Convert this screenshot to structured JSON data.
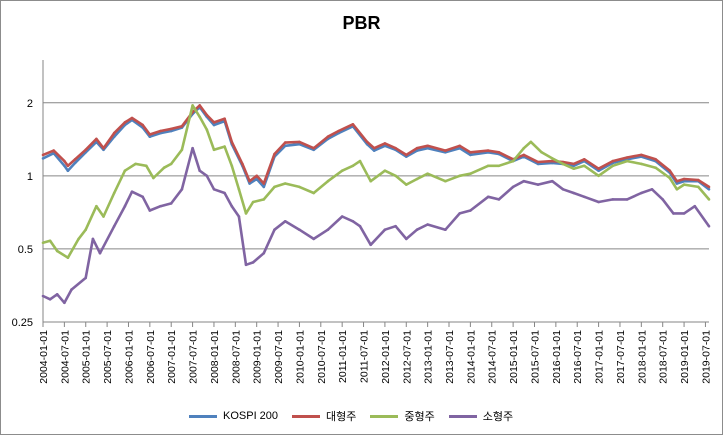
{
  "chart_data": {
    "type": "line",
    "title": "PBR",
    "xlabel": "",
    "ylabel": "",
    "y_scale": "log",
    "ylim": [
      0.25,
      3
    ],
    "y_ticks": [
      0.25,
      0.5,
      1,
      2
    ],
    "y_tick_labels": [
      "0.25",
      "0.5",
      "1",
      "2"
    ],
    "grid": true,
    "legend_position": "bottom",
    "x_start": "2004-01",
    "x_end": "2019-08",
    "x_tick_labels": [
      "2004-01-01",
      "2004-07-01",
      "2005-01-01",
      "2005-07-01",
      "2006-01-01",
      "2006-07-01",
      "2007-01-01",
      "2007-07-01",
      "2008-01-01",
      "2008-07-01",
      "2009-01-01",
      "2009-07-01",
      "2010-01-01",
      "2010-07-01",
      "2011-01-01",
      "2011-07-01",
      "2012-01-01",
      "2012-07-01",
      "2013-01-01",
      "2013-07-01",
      "2014-01-01",
      "2014-07-01",
      "2015-01-01",
      "2015-07-01",
      "2016-01-01",
      "2016-07-01",
      "2017-01-01",
      "2017-07-01",
      "2018-01-01",
      "2018-07-01",
      "2019-01-01",
      "2019-07-01"
    ],
    "series": [
      {
        "name": "KOSPI 200",
        "color": "#4f81bd",
        "points": [
          [
            "2004-01",
            1.18
          ],
          [
            "2004-04",
            1.24
          ],
          [
            "2004-07",
            1.1
          ],
          [
            "2004-08",
            1.05
          ],
          [
            "2004-10",
            1.13
          ],
          [
            "2005-01",
            1.25
          ],
          [
            "2005-04",
            1.38
          ],
          [
            "2005-06",
            1.28
          ],
          [
            "2005-09",
            1.45
          ],
          [
            "2005-12",
            1.62
          ],
          [
            "2006-02",
            1.7
          ],
          [
            "2006-05",
            1.58
          ],
          [
            "2006-07",
            1.45
          ],
          [
            "2006-10",
            1.5
          ],
          [
            "2007-01",
            1.53
          ],
          [
            "2007-04",
            1.58
          ],
          [
            "2007-07",
            1.8
          ],
          [
            "2007-09",
            1.92
          ],
          [
            "2007-11",
            1.75
          ],
          [
            "2008-01",
            1.62
          ],
          [
            "2008-04",
            1.68
          ],
          [
            "2008-06",
            1.35
          ],
          [
            "2008-09",
            1.1
          ],
          [
            "2008-11",
            0.93
          ],
          [
            "2009-01",
            0.97
          ],
          [
            "2009-03",
            0.9
          ],
          [
            "2009-06",
            1.2
          ],
          [
            "2009-09",
            1.33
          ],
          [
            "2010-01",
            1.35
          ],
          [
            "2010-05",
            1.28
          ],
          [
            "2010-09",
            1.42
          ],
          [
            "2010-12",
            1.5
          ],
          [
            "2011-04",
            1.6
          ],
          [
            "2011-08",
            1.35
          ],
          [
            "2011-10",
            1.27
          ],
          [
            "2012-01",
            1.33
          ],
          [
            "2012-04",
            1.28
          ],
          [
            "2012-07",
            1.2
          ],
          [
            "2012-10",
            1.27
          ],
          [
            "2013-01",
            1.3
          ],
          [
            "2013-06",
            1.25
          ],
          [
            "2013-10",
            1.3
          ],
          [
            "2014-01",
            1.22
          ],
          [
            "2014-06",
            1.25
          ],
          [
            "2014-09",
            1.23
          ],
          [
            "2015-01",
            1.15
          ],
          [
            "2015-04",
            1.2
          ],
          [
            "2015-08",
            1.12
          ],
          [
            "2015-12",
            1.13
          ],
          [
            "2016-03",
            1.12
          ],
          [
            "2016-06",
            1.1
          ],
          [
            "2016-09",
            1.15
          ],
          [
            "2017-01",
            1.05
          ],
          [
            "2017-05",
            1.13
          ],
          [
            "2017-09",
            1.17
          ],
          [
            "2018-01",
            1.2
          ],
          [
            "2018-05",
            1.15
          ],
          [
            "2018-09",
            1.03
          ],
          [
            "2018-11",
            0.93
          ],
          [
            "2019-01",
            0.95
          ],
          [
            "2019-05",
            0.95
          ],
          [
            "2019-08",
            0.88
          ]
        ]
      },
      {
        "name": "대형주",
        "color": "#c0504d",
        "points": [
          [
            "2004-01",
            1.22
          ],
          [
            "2004-04",
            1.27
          ],
          [
            "2004-07",
            1.15
          ],
          [
            "2004-08",
            1.1
          ],
          [
            "2004-10",
            1.17
          ],
          [
            "2005-01",
            1.28
          ],
          [
            "2005-04",
            1.42
          ],
          [
            "2005-06",
            1.3
          ],
          [
            "2005-09",
            1.5
          ],
          [
            "2005-12",
            1.66
          ],
          [
            "2006-02",
            1.73
          ],
          [
            "2006-05",
            1.62
          ],
          [
            "2006-07",
            1.48
          ],
          [
            "2006-10",
            1.53
          ],
          [
            "2007-01",
            1.56
          ],
          [
            "2007-04",
            1.6
          ],
          [
            "2007-07",
            1.83
          ],
          [
            "2007-09",
            1.95
          ],
          [
            "2007-11",
            1.78
          ],
          [
            "2008-01",
            1.66
          ],
          [
            "2008-04",
            1.72
          ],
          [
            "2008-06",
            1.38
          ],
          [
            "2008-09",
            1.12
          ],
          [
            "2008-11",
            0.95
          ],
          [
            "2009-01",
            1.0
          ],
          [
            "2009-03",
            0.93
          ],
          [
            "2009-06",
            1.23
          ],
          [
            "2009-09",
            1.37
          ],
          [
            "2010-01",
            1.38
          ],
          [
            "2010-05",
            1.3
          ],
          [
            "2010-09",
            1.45
          ],
          [
            "2010-12",
            1.53
          ],
          [
            "2011-04",
            1.63
          ],
          [
            "2011-08",
            1.38
          ],
          [
            "2011-10",
            1.3
          ],
          [
            "2012-01",
            1.36
          ],
          [
            "2012-04",
            1.3
          ],
          [
            "2012-07",
            1.22
          ],
          [
            "2012-10",
            1.3
          ],
          [
            "2013-01",
            1.33
          ],
          [
            "2013-06",
            1.27
          ],
          [
            "2013-10",
            1.33
          ],
          [
            "2014-01",
            1.25
          ],
          [
            "2014-06",
            1.27
          ],
          [
            "2014-09",
            1.25
          ],
          [
            "2015-01",
            1.17
          ],
          [
            "2015-04",
            1.22
          ],
          [
            "2015-08",
            1.14
          ],
          [
            "2015-12",
            1.15
          ],
          [
            "2016-03",
            1.14
          ],
          [
            "2016-06",
            1.12
          ],
          [
            "2016-09",
            1.17
          ],
          [
            "2017-01",
            1.07
          ],
          [
            "2017-05",
            1.15
          ],
          [
            "2017-09",
            1.19
          ],
          [
            "2018-01",
            1.22
          ],
          [
            "2018-05",
            1.17
          ],
          [
            "2018-09",
            1.05
          ],
          [
            "2018-11",
            0.95
          ],
          [
            "2019-01",
            0.97
          ],
          [
            "2019-05",
            0.96
          ],
          [
            "2019-08",
            0.9
          ]
        ]
      },
      {
        "name": "중형주",
        "color": "#9bbb59",
        "points": [
          [
            "2004-01",
            0.53
          ],
          [
            "2004-03",
            0.54
          ],
          [
            "2004-05",
            0.49
          ],
          [
            "2004-08",
            0.46
          ],
          [
            "2004-11",
            0.55
          ],
          [
            "2005-01",
            0.6
          ],
          [
            "2005-04",
            0.75
          ],
          [
            "2005-06",
            0.68
          ],
          [
            "2005-09",
            0.85
          ],
          [
            "2005-12",
            1.05
          ],
          [
            "2006-03",
            1.12
          ],
          [
            "2006-06",
            1.1
          ],
          [
            "2006-08",
            0.98
          ],
          [
            "2006-11",
            1.08
          ],
          [
            "2007-01",
            1.12
          ],
          [
            "2007-04",
            1.28
          ],
          [
            "2007-07",
            1.95
          ],
          [
            "2007-09",
            1.75
          ],
          [
            "2007-11",
            1.55
          ],
          [
            "2008-01",
            1.28
          ],
          [
            "2008-04",
            1.32
          ],
          [
            "2008-06",
            1.1
          ],
          [
            "2008-08",
            0.88
          ],
          [
            "2008-10",
            0.7
          ],
          [
            "2008-12",
            0.78
          ],
          [
            "2009-03",
            0.8
          ],
          [
            "2009-06",
            0.9
          ],
          [
            "2009-09",
            0.93
          ],
          [
            "2010-01",
            0.9
          ],
          [
            "2010-05",
            0.85
          ],
          [
            "2010-09",
            0.95
          ],
          [
            "2011-01",
            1.05
          ],
          [
            "2011-04",
            1.1
          ],
          [
            "2011-06",
            1.15
          ],
          [
            "2011-09",
            0.95
          ],
          [
            "2012-01",
            1.05
          ],
          [
            "2012-04",
            1.0
          ],
          [
            "2012-07",
            0.92
          ],
          [
            "2012-10",
            0.97
          ],
          [
            "2013-01",
            1.02
          ],
          [
            "2013-06",
            0.95
          ],
          [
            "2013-10",
            1.0
          ],
          [
            "2014-01",
            1.02
          ],
          [
            "2014-06",
            1.1
          ],
          [
            "2014-09",
            1.1
          ],
          [
            "2015-01",
            1.15
          ],
          [
            "2015-04",
            1.3
          ],
          [
            "2015-06",
            1.38
          ],
          [
            "2015-09",
            1.25
          ],
          [
            "2015-12",
            1.18
          ],
          [
            "2016-03",
            1.12
          ],
          [
            "2016-06",
            1.07
          ],
          [
            "2016-09",
            1.1
          ],
          [
            "2017-01",
            1.0
          ],
          [
            "2017-05",
            1.1
          ],
          [
            "2017-09",
            1.15
          ],
          [
            "2018-01",
            1.12
          ],
          [
            "2018-05",
            1.08
          ],
          [
            "2018-09",
            0.98
          ],
          [
            "2018-11",
            0.88
          ],
          [
            "2019-01",
            0.92
          ],
          [
            "2019-05",
            0.9
          ],
          [
            "2019-08",
            0.8
          ]
        ]
      },
      {
        "name": "소형주",
        "color": "#8064a2",
        "points": [
          [
            "2004-01",
            0.32
          ],
          [
            "2004-03",
            0.31
          ],
          [
            "2004-05",
            0.325
          ],
          [
            "2004-07",
            0.3
          ],
          [
            "2004-09",
            0.34
          ],
          [
            "2005-01",
            0.38
          ],
          [
            "2005-03",
            0.55
          ],
          [
            "2005-05",
            0.48
          ],
          [
            "2005-09",
            0.62
          ],
          [
            "2005-12",
            0.75
          ],
          [
            "2006-02",
            0.86
          ],
          [
            "2006-05",
            0.82
          ],
          [
            "2006-07",
            0.72
          ],
          [
            "2006-10",
            0.75
          ],
          [
            "2007-01",
            0.77
          ],
          [
            "2007-04",
            0.88
          ],
          [
            "2007-07",
            1.3
          ],
          [
            "2007-09",
            1.05
          ],
          [
            "2007-11",
            1.0
          ],
          [
            "2008-01",
            0.88
          ],
          [
            "2008-04",
            0.85
          ],
          [
            "2008-06",
            0.75
          ],
          [
            "2008-08",
            0.68
          ],
          [
            "2008-10",
            0.43
          ],
          [
            "2008-12",
            0.44
          ],
          [
            "2009-03",
            0.48
          ],
          [
            "2009-06",
            0.6
          ],
          [
            "2009-09",
            0.65
          ],
          [
            "2010-01",
            0.6
          ],
          [
            "2010-05",
            0.55
          ],
          [
            "2010-09",
            0.6
          ],
          [
            "2011-01",
            0.68
          ],
          [
            "2011-04",
            0.65
          ],
          [
            "2011-06",
            0.62
          ],
          [
            "2011-09",
            0.52
          ],
          [
            "2012-01",
            0.6
          ],
          [
            "2012-04",
            0.62
          ],
          [
            "2012-07",
            0.55
          ],
          [
            "2012-10",
            0.6
          ],
          [
            "2013-01",
            0.63
          ],
          [
            "2013-06",
            0.6
          ],
          [
            "2013-10",
            0.7
          ],
          [
            "2014-01",
            0.72
          ],
          [
            "2014-06",
            0.82
          ],
          [
            "2014-09",
            0.8
          ],
          [
            "2015-01",
            0.9
          ],
          [
            "2015-04",
            0.95
          ],
          [
            "2015-08",
            0.92
          ],
          [
            "2015-12",
            0.95
          ],
          [
            "2016-03",
            0.88
          ],
          [
            "2016-06",
            0.85
          ],
          [
            "2016-09",
            0.82
          ],
          [
            "2017-01",
            0.78
          ],
          [
            "2017-05",
            0.8
          ],
          [
            "2017-09",
            0.8
          ],
          [
            "2018-01",
            0.85
          ],
          [
            "2018-04",
            0.88
          ],
          [
            "2018-07",
            0.8
          ],
          [
            "2018-10",
            0.7
          ],
          [
            "2019-01",
            0.7
          ],
          [
            "2019-04",
            0.75
          ],
          [
            "2019-08",
            0.62
          ]
        ]
      }
    ]
  }
}
